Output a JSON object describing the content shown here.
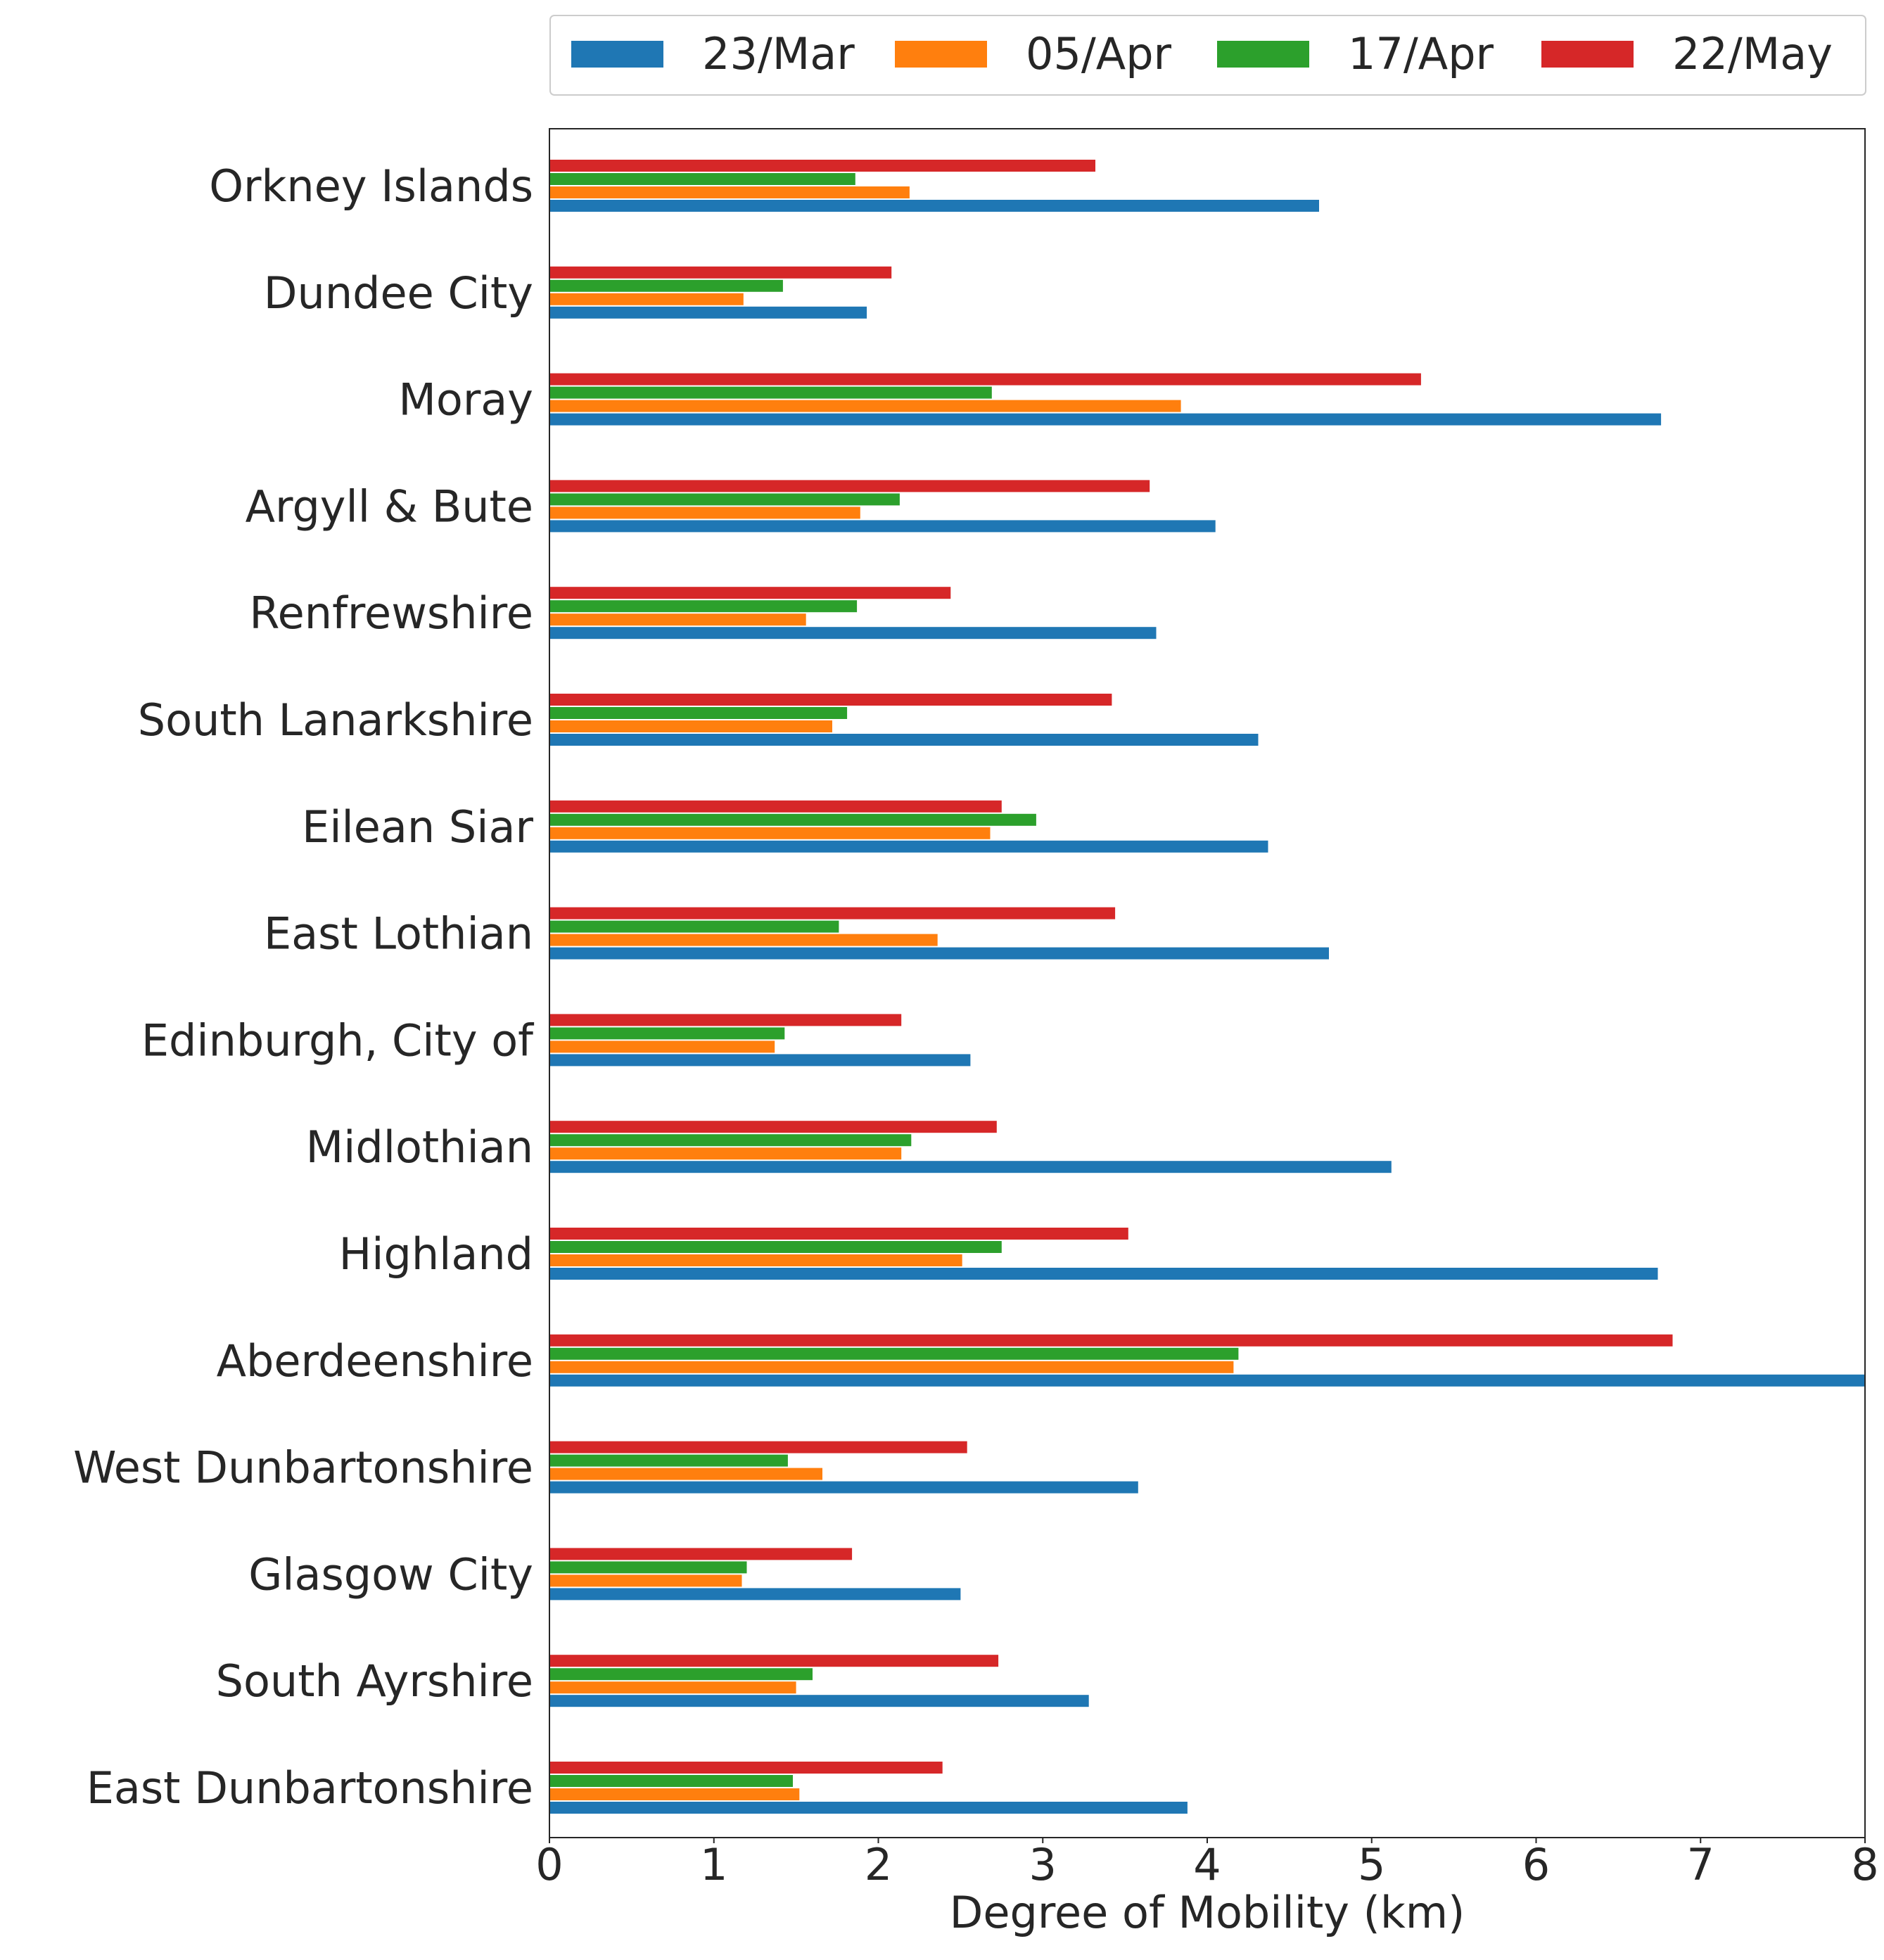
{
  "chart_data": {
    "type": "bar",
    "orientation": "horizontal",
    "categories": [
      "Orkney Islands",
      "Dundee City",
      "Moray",
      "Argyll & Bute",
      "Renfrewshire",
      "South Lanarkshire",
      "Eilean Siar",
      "East Lothian",
      "Edinburgh, City of",
      "Midlothian",
      "Highland",
      "Aberdeenshire",
      "West Dunbartonshire",
      "Glasgow City",
      "South Ayrshire",
      "East Dunbartonshire"
    ],
    "series": [
      {
        "name": "23/Mar",
        "color": "#1f77b4",
        "values": [
          4.68,
          1.93,
          6.76,
          4.05,
          3.69,
          4.31,
          4.37,
          4.74,
          2.56,
          5.12,
          6.74,
          8.0,
          3.58,
          2.5,
          3.28,
          3.88
        ]
      },
      {
        "name": "05/Apr",
        "color": "#ff7f0e",
        "values": [
          2.19,
          1.18,
          3.84,
          1.89,
          1.56,
          1.72,
          2.68,
          2.36,
          1.37,
          2.14,
          2.51,
          4.16,
          1.66,
          1.17,
          1.5,
          1.52
        ]
      },
      {
        "name": "17/Apr",
        "color": "#2ca02c",
        "values": [
          1.86,
          1.42,
          2.69,
          2.13,
          1.87,
          1.81,
          2.96,
          1.76,
          1.43,
          2.2,
          2.75,
          4.19,
          1.45,
          1.2,
          1.6,
          1.48
        ]
      },
      {
        "name": "22/May",
        "color": "#d62728",
        "values": [
          3.32,
          2.08,
          5.3,
          3.65,
          2.44,
          3.42,
          2.75,
          3.44,
          2.14,
          2.72,
          3.52,
          6.83,
          2.54,
          1.84,
          2.73,
          2.39
        ]
      }
    ],
    "xlabel": "Degree of Mobility (km)",
    "ylabel": "",
    "xlim": [
      0,
      8
    ],
    "xticks": [
      0,
      1,
      2,
      3,
      4,
      5,
      6,
      7,
      8
    ],
    "grid": false,
    "legend": {
      "position": "top",
      "columns": 4
    }
  }
}
